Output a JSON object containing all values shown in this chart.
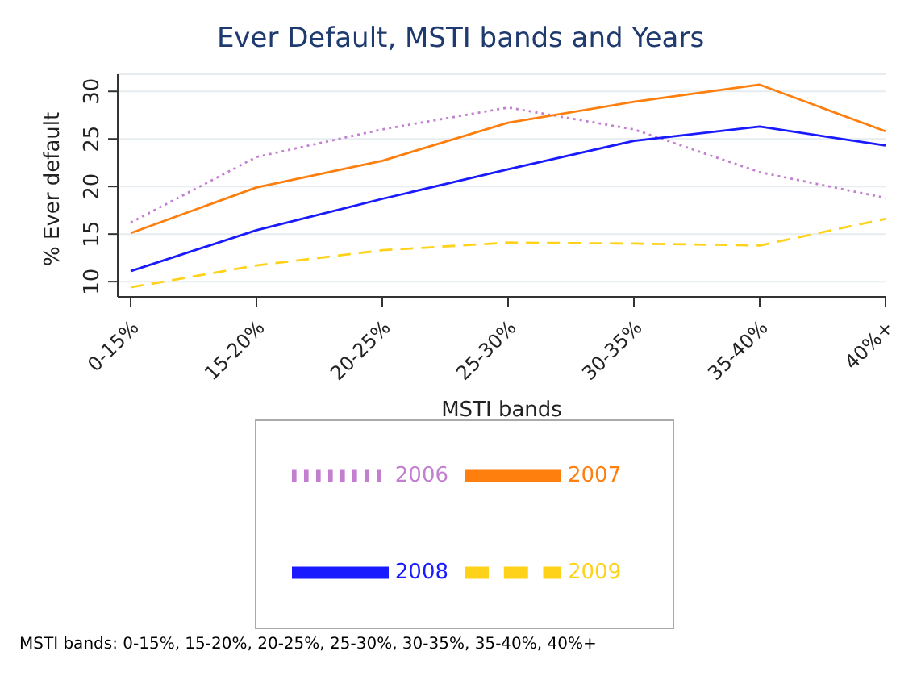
{
  "chart_data": {
    "type": "line",
    "title": "Ever Default, MSTI bands and Years",
    "xlabel": "MSTI bands",
    "ylabel": "% Ever default",
    "categories": [
      "0-15%",
      "15-20%",
      "20-25%",
      "25-30%",
      "30-35%",
      "35-40%",
      "40%+"
    ],
    "series": [
      {
        "name": "2006",
        "color": "#c27fcf",
        "line_style": "dotted",
        "values": [
          16.2,
          23.1,
          26.0,
          28.3,
          26.0,
          21.5,
          18.8
        ]
      },
      {
        "name": "2007",
        "color": "#ff7f0e",
        "line_style": "solid",
        "values": [
          15.1,
          19.9,
          22.7,
          26.7,
          28.9,
          30.7,
          25.8
        ]
      },
      {
        "name": "2008",
        "color": "#1a1aff",
        "line_style": "solid",
        "values": [
          11.1,
          15.4,
          18.7,
          21.8,
          24.8,
          26.3,
          24.3
        ]
      },
      {
        "name": "2009",
        "color": "#ffd21a",
        "line_style": "dashed",
        "values": [
          9.4,
          11.7,
          13.3,
          14.1,
          14.0,
          13.8,
          16.6
        ]
      }
    ],
    "ylim": [
      8.4,
      31.8
    ],
    "yticks": [
      10,
      15,
      20,
      25,
      30
    ],
    "grid": "y",
    "legend": "bottom",
    "marker": "none",
    "annotations": [
      "MSTI bands: 0-15%, 15-20%, 20-25%, 25-30%, 30-35%, 35-40%, 40%+"
    ]
  }
}
